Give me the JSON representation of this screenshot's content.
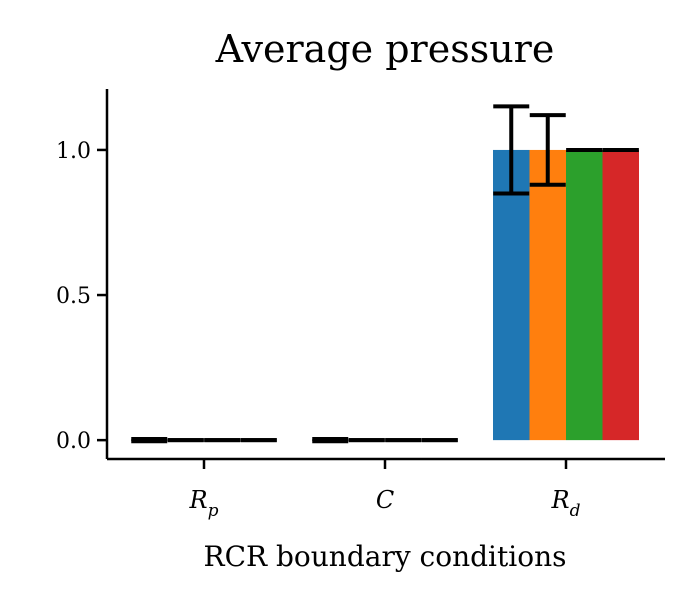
{
  "chart_data": {
    "type": "bar",
    "title": "Average pressure",
    "xlabel": "RCR boundary conditions",
    "ylabel": "",
    "categories": [
      {
        "base": "R",
        "sub": "p"
      },
      {
        "base": "C",
        "sub": ""
      },
      {
        "base": "R",
        "sub": "d"
      }
    ],
    "ylim": [
      -0.065,
      1.21
    ],
    "yticks": [
      0.0,
      0.5,
      1.0
    ],
    "ytick_labels": [
      "0.0",
      "0.5",
      "1.0"
    ],
    "grid": false,
    "series": [
      {
        "color": "#1f77b4",
        "values": [
          0.0,
          0.0,
          1.0
        ],
        "errors": [
          0.004,
          0.004,
          0.15
        ]
      },
      {
        "color": "#ff7f0e",
        "values": [
          0.0,
          0.0,
          1.0
        ],
        "errors": [
          0.0,
          0.0,
          0.12
        ]
      },
      {
        "color": "#2ca02c",
        "values": [
          0.0,
          0.0,
          1.0
        ],
        "errors": [
          0.0,
          0.0,
          0.0
        ]
      },
      {
        "color": "#d62728",
        "values": [
          0.0,
          0.0,
          1.0
        ],
        "errors": [
          0.0,
          0.0,
          0.0
        ]
      }
    ]
  }
}
